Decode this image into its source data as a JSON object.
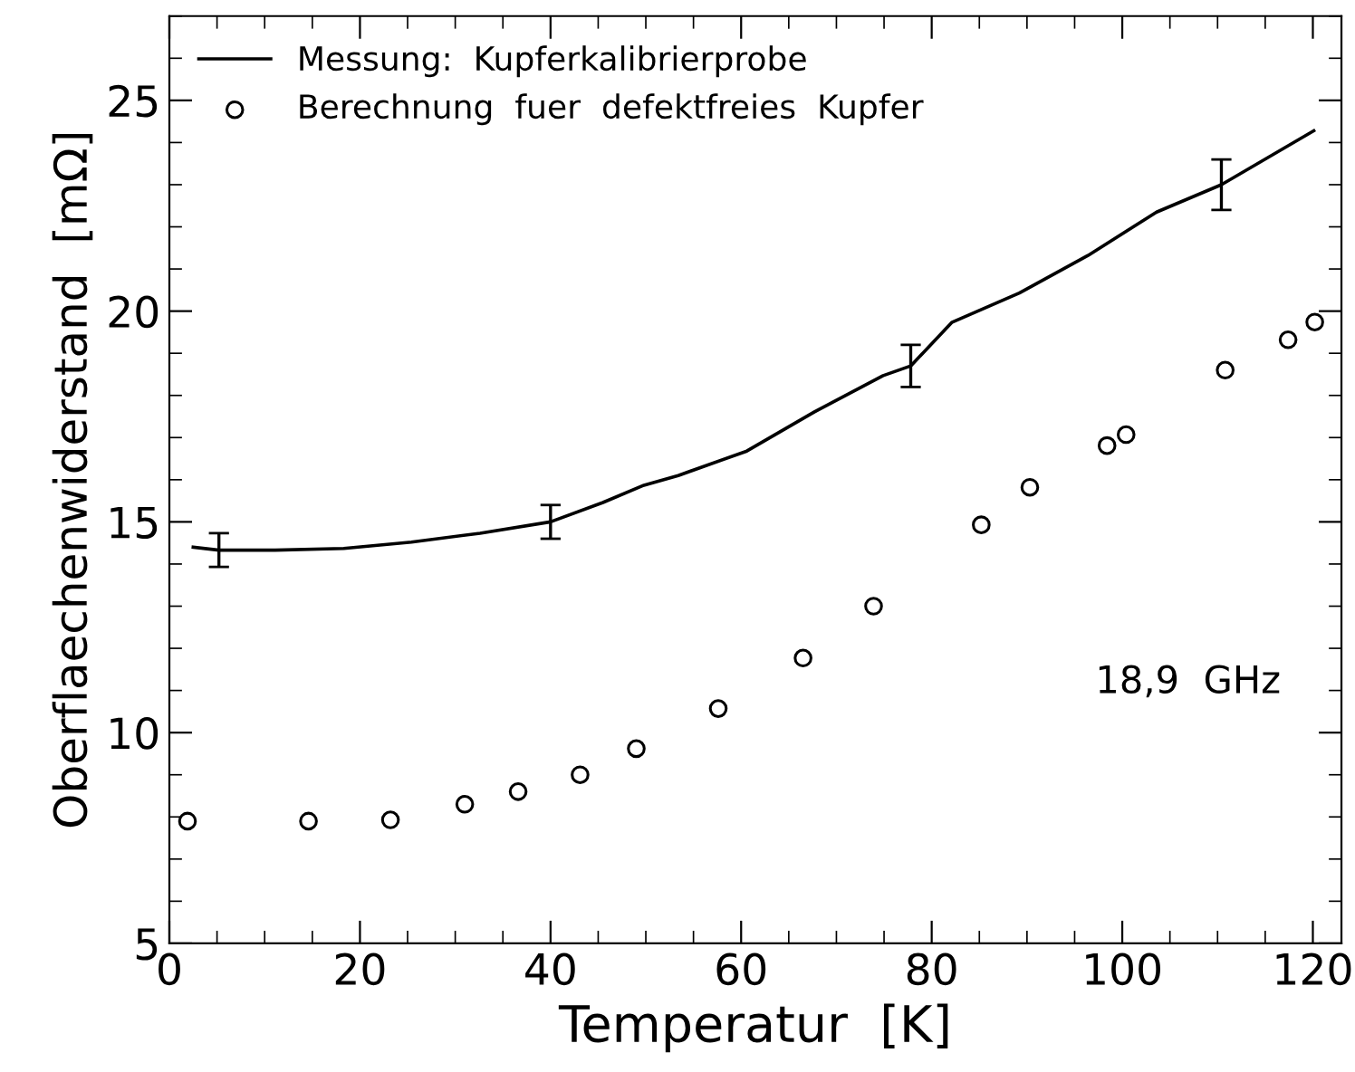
{
  "chart_data": {
    "type": "line",
    "xlabel": "Temperatur  [K]",
    "ylabel": "Oberflaechenwiderstand  [mΩ]",
    "xlim": [
      0,
      123
    ],
    "ylim": [
      5,
      27
    ],
    "xticks": [
      0,
      20,
      40,
      60,
      80,
      100,
      120
    ],
    "yticks": [
      5,
      10,
      15,
      20,
      25
    ],
    "grid": false,
    "legend": "top left",
    "annotations": [
      "18,9  GHz"
    ],
    "series": [
      {
        "name": "Messung:  Kupferkalibrierprobe",
        "color": "#000000",
        "marker": "none",
        "line_style": "solid",
        "x": [
          2.5,
          5.2,
          11.1,
          18.3,
          25.4,
          32.6,
          40,
          45.5,
          49.8,
          53.4,
          60.6,
          67.7,
          74.9,
          77.8,
          82.1,
          89.2,
          96.4,
          103.6,
          110.4,
          120.1
        ],
        "values": [
          14.4,
          14.33,
          14.33,
          14.37,
          14.52,
          14.73,
          15.0,
          15.46,
          15.87,
          16.1,
          16.68,
          17.61,
          18.47,
          18.7,
          19.73,
          20.43,
          21.32,
          22.35,
          23.0,
          24.28
        ],
        "errors": [
          null,
          0.4,
          null,
          null,
          null,
          null,
          0.4,
          null,
          null,
          null,
          null,
          null,
          null,
          0.5,
          null,
          null,
          null,
          null,
          0.6,
          null
        ]
      },
      {
        "name": "Berechnung  fuer  defektfreies  Kupfer",
        "type": "scatter",
        "color": "#000000",
        "marker": "circle",
        "x": [
          1.9,
          14.6,
          23.2,
          31.0,
          36.6,
          43.1,
          49.0,
          57.6,
          66.5,
          73.9,
          85.2,
          90.3,
          98.4,
          100.4,
          110.8,
          117.4,
          120.2
        ],
        "values": [
          7.9,
          7.9,
          7.93,
          8.3,
          8.6,
          9.0,
          9.62,
          10.57,
          11.77,
          13.0,
          14.93,
          15.82,
          16.81,
          17.07,
          18.6,
          19.32,
          19.74
        ]
      }
    ]
  }
}
